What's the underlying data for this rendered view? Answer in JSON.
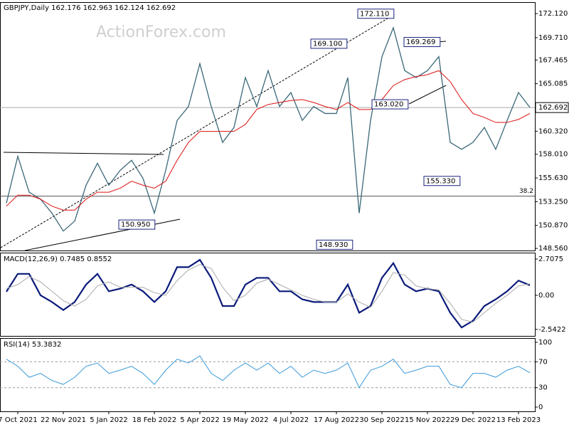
{
  "chart_data": [
    {
      "type": "line",
      "title": "GBPJPY,Daily  162.176 162.963 162.124 162.692",
      "watermark": "ActionForex.com",
      "ylim": [
        148.35,
        173.2
      ],
      "yticks": [
        {
          "value": 172.12,
          "label": "172.120"
        },
        {
          "value": 169.71,
          "label": "169.710"
        },
        167.465,
        165.085,
        {
          "value": 160.32,
          "label": "160.320"
        },
        {
          "value": 158.01,
          "label": "158.010"
        },
        {
          "value": 155.63,
          "label": "155.630"
        },
        {
          "value": 153.25,
          "label": "153.250"
        },
        {
          "value": 150.87,
          "label": "150.870"
        },
        {
          "value": 148.56,
          "label": "148.560"
        }
      ],
      "last_price": {
        "value": 162.692,
        "label": "162.692"
      },
      "fib_level": {
        "value": 153.8,
        "label": "38.2"
      },
      "annotations": [
        {
          "value": 172.11,
          "label": "172.110"
        },
        {
          "value": 169.1,
          "label": "169.100"
        },
        {
          "value": 169.269,
          "label": "169.269"
        },
        {
          "value": 163.02,
          "label": "163.020"
        },
        {
          "value": 155.33,
          "label": "155.330"
        },
        {
          "value": 150.95,
          "label": "150.950"
        },
        {
          "value": 148.93,
          "label": "148.930"
        }
      ],
      "series": [
        {
          "color": "#3a6878",
          "values": [
            153.1,
            157.8,
            154.2,
            153.5,
            152.1,
            150.3,
            151.3,
            154.9,
            157.1,
            154.9,
            156.4,
            157.4,
            155.6,
            152.1,
            156.4,
            161.4,
            162.8,
            167.1,
            162.8,
            159.2,
            160.7,
            165.7,
            162.8,
            166.4,
            162.8,
            164.2,
            161.4,
            162.8,
            162.1,
            162.1,
            165.7,
            152.1,
            161.4,
            167.8,
            170.7,
            166.4,
            165.7,
            166.4,
            167.8,
            159.2,
            158.5,
            159.2,
            160.7,
            158.5,
            161.4,
            164.2,
            162.7
          ]
        },
        {
          "color": "#dd1111",
          "values": [
            152.8,
            153.9,
            153.9,
            153.5,
            152.8,
            152.4,
            152.4,
            153.5,
            154.2,
            154.2,
            154.6,
            155.3,
            154.9,
            154.6,
            155.3,
            157.4,
            159.2,
            160.3,
            160.3,
            160.3,
            160.3,
            161.0,
            162.5,
            163.0,
            163.2,
            163.4,
            163.5,
            163.2,
            162.8,
            162.5,
            163.2,
            162.5,
            162.5,
            163.5,
            164.9,
            165.5,
            165.8,
            166.0,
            166.4,
            165.3,
            163.5,
            162.1,
            161.7,
            161.2,
            161.2,
            161.5,
            162.1
          ]
        }
      ]
    },
    {
      "type": "line",
      "title": "MACD(12,26,9) 0.7485 0.8552",
      "ylim": [
        -3.03,
        3.13
      ],
      "yticks": [
        2.7075,
        {
          "value": 0,
          "label": "0.00"
        },
        -2.5422
      ],
      "series": [
        {
          "color": "#0a1a7a",
          "values": [
            0.27,
            1.6,
            1.6,
            0,
            -0.5,
            -1.1,
            -0.5,
            0.8,
            1.6,
            0.3,
            0.5,
            0.8,
            0.3,
            -0.5,
            0.3,
            2.1,
            2.1,
            2.65,
            1.3,
            -0.8,
            -0.8,
            0.8,
            1.3,
            1.3,
            0.3,
            0.3,
            -0.3,
            -0.5,
            -0.5,
            -0.5,
            0.8,
            -1.3,
            -0.8,
            1.3,
            2.4,
            0.8,
            0.3,
            0.5,
            0.3,
            -1.3,
            -2.4,
            -1.9,
            -0.8,
            -0.3,
            0.3,
            1.1,
            0.75
          ]
        },
        {
          "color": "#aaaaaa",
          "values": [
            0.5,
            0.8,
            1.4,
            1.0,
            0.3,
            -0.4,
            -0.8,
            -0.3,
            0.7,
            1.0,
            0.6,
            0.6,
            0.6,
            0.2,
            0.0,
            1.1,
            1.9,
            2.3,
            2.0,
            0.6,
            -0.4,
            0.0,
            0.9,
            1.2,
            0.8,
            0.4,
            0.0,
            -0.3,
            -0.5,
            -0.5,
            0.1,
            -0.5,
            -0.9,
            0.3,
            1.7,
            1.5,
            0.7,
            0.5,
            0.4,
            -0.6,
            -1.8,
            -2.0,
            -1.3,
            -0.6,
            0.0,
            0.7,
            0.86
          ]
        }
      ]
    },
    {
      "type": "line",
      "title": "RSI(14) 53.3832",
      "ylim": [
        -6.6,
        105.5
      ],
      "yticks": [
        100,
        70,
        30,
        0
      ],
      "levels": [
        70,
        30
      ],
      "categories": [
        null,
        "7 Oct 2021",
        null,
        null,
        null,
        "22 Nov 2021",
        null,
        null,
        null,
        "5 Jan 2022",
        null,
        null,
        null,
        "18 Feb 2022",
        null,
        null,
        null,
        "5 Apr 2022",
        null,
        null,
        null,
        "19 May 2022",
        null,
        null,
        null,
        "4 Jul 2022",
        null,
        null,
        null,
        "17 Aug 2022",
        null,
        null,
        null,
        "30 Sep 2022",
        null,
        null,
        null,
        "15 Nov 2022",
        null,
        null,
        null,
        "29 Dec 2022",
        null,
        null,
        null,
        "13 Feb 2023",
        null
      ],
      "series": [
        {
          "color": "#3a9ad9",
          "values": [
            74,
            63,
            46,
            52,
            41,
            35,
            46,
            63,
            68,
            52,
            57,
            63,
            52,
            35,
            57,
            74,
            68,
            79,
            52,
            41,
            57,
            68,
            57,
            68,
            52,
            63,
            46,
            57,
            52,
            57,
            68,
            30,
            57,
            63,
            74,
            52,
            57,
            63,
            63,
            35,
            30,
            52,
            52,
            46,
            57,
            63,
            53
          ]
        }
      ]
    }
  ]
}
